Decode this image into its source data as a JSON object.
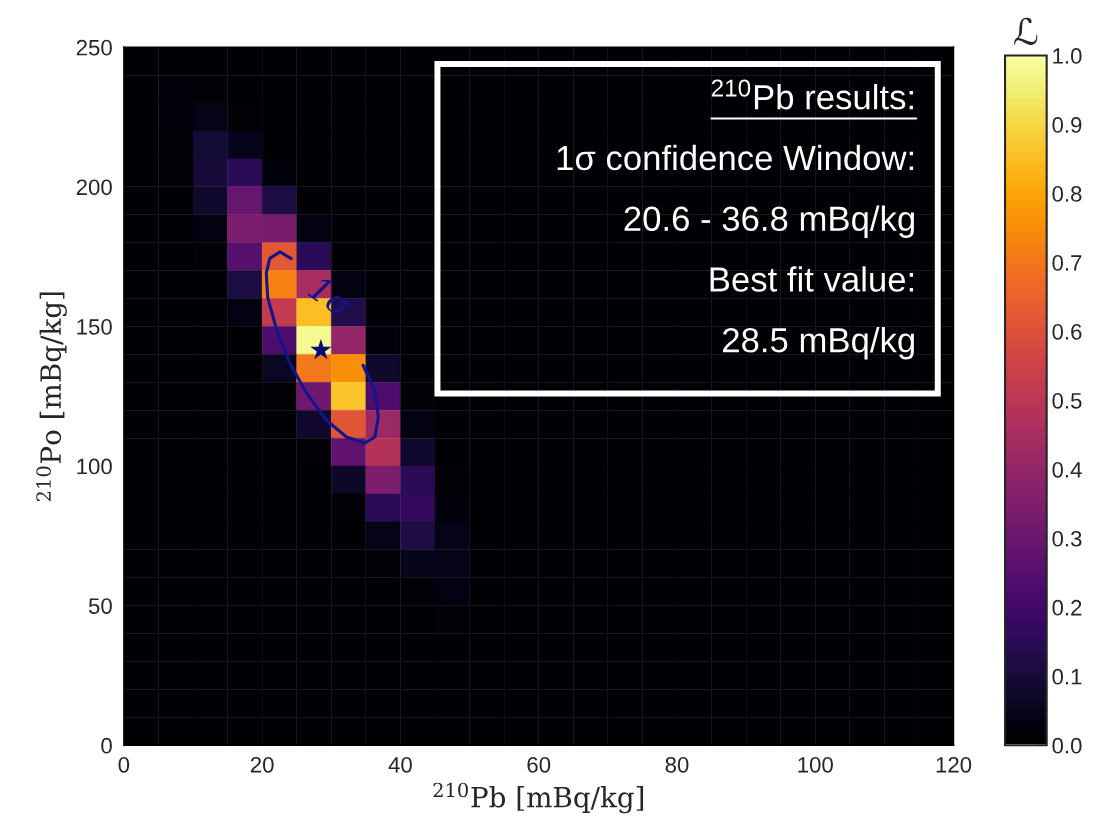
{
  "chart_data": {
    "type": "heatmap",
    "xlabel": "$^{210}$Pb [mBq/kg]",
    "ylabel": "$^{210}$Po [mBq/kg]",
    "clabel": "ℒ",
    "x": [
      2.5,
      7.5,
      12.5,
      17.5,
      22.5,
      27.5,
      32.5,
      37.5,
      42.5,
      47.5,
      52.5,
      57.5,
      62.5,
      67.5,
      72.5,
      77.5,
      82.5,
      87.5,
      92.5,
      97.5,
      102.5,
      107.5,
      112.5,
      117.5
    ],
    "y": [
      245,
      235,
      225,
      215,
      205,
      195,
      185,
      175,
      165,
      155,
      145,
      135,
      125,
      115,
      105,
      95,
      85,
      75,
      65,
      55,
      45,
      35,
      25,
      15,
      5
    ],
    "cells": [
      [
        0,
        0,
        0,
        0,
        0,
        0,
        0,
        0,
        0,
        0,
        0,
        0,
        0,
        0,
        0,
        0,
        0,
        0,
        0,
        0,
        0,
        0,
        0,
        0
      ],
      [
        0,
        0.02,
        0.01,
        0,
        0,
        0,
        0,
        0,
        0,
        0,
        0,
        0,
        0,
        0,
        0,
        0,
        0,
        0,
        0,
        0,
        0,
        0,
        0,
        0
      ],
      [
        0,
        0.02,
        0.04,
        0.01,
        0,
        0,
        0,
        0,
        0,
        0,
        0,
        0,
        0,
        0,
        0,
        0,
        0,
        0,
        0,
        0,
        0,
        0,
        0,
        0
      ],
      [
        0,
        0.01,
        0.09,
        0.05,
        0,
        0,
        0,
        0,
        0,
        0,
        0,
        0,
        0,
        0,
        0,
        0,
        0,
        0,
        0,
        0,
        0,
        0,
        0,
        0
      ],
      [
        0,
        0.01,
        0.1,
        0.15,
        0.02,
        0,
        0,
        0,
        0,
        0,
        0,
        0,
        0,
        0,
        0,
        0,
        0,
        0,
        0,
        0,
        0,
        0,
        0,
        0
      ],
      [
        0,
        0,
        0.08,
        0.29,
        0.11,
        0,
        0,
        0,
        0,
        0,
        0,
        0,
        0,
        0,
        0,
        0,
        0,
        0,
        0,
        0,
        0,
        0,
        0,
        0
      ],
      [
        0,
        0,
        0.03,
        0.34,
        0.33,
        0.03,
        0,
        0,
        0,
        0,
        0,
        0,
        0,
        0,
        0,
        0,
        0,
        0,
        0,
        0,
        0,
        0,
        0,
        0
      ],
      [
        0,
        0,
        0.01,
        0.25,
        0.62,
        0.15,
        0,
        0,
        0,
        0,
        0,
        0,
        0,
        0,
        0,
        0,
        0,
        0,
        0,
        0,
        0,
        0,
        0,
        0
      ],
      [
        0,
        0,
        0,
        0.11,
        0.72,
        0.45,
        0.03,
        0,
        0,
        0,
        0,
        0,
        0,
        0,
        0,
        0,
        0,
        0,
        0,
        0,
        0,
        0,
        0,
        0
      ],
      [
        0,
        0,
        0,
        0.03,
        0.52,
        0.85,
        0.13,
        0,
        0,
        0,
        0,
        0,
        0,
        0,
        0,
        0,
        0,
        0,
        0,
        0,
        0,
        0,
        0,
        0
      ],
      [
        0,
        0,
        0,
        0,
        0.23,
        0.98,
        0.4,
        0.02,
        0,
        0,
        0,
        0,
        0,
        0,
        0,
        0,
        0,
        0,
        0,
        0,
        0,
        0,
        0,
        0
      ],
      [
        0,
        0,
        0,
        0,
        0.06,
        0.7,
        0.75,
        0.08,
        0,
        0,
        0,
        0,
        0,
        0,
        0,
        0,
        0,
        0,
        0,
        0,
        0,
        0,
        0,
        0
      ],
      [
        0,
        0,
        0,
        0,
        0.01,
        0.31,
        0.86,
        0.23,
        0.01,
        0,
        0,
        0,
        0,
        0,
        0,
        0,
        0,
        0,
        0,
        0,
        0,
        0,
        0,
        0
      ],
      [
        0,
        0,
        0,
        0,
        0,
        0.08,
        0.61,
        0.42,
        0.03,
        0,
        0,
        0,
        0,
        0,
        0,
        0,
        0,
        0,
        0,
        0,
        0,
        0,
        0,
        0
      ],
      [
        0,
        0,
        0,
        0,
        0,
        0.01,
        0.27,
        0.48,
        0.08,
        0,
        0,
        0,
        0,
        0,
        0,
        0,
        0,
        0,
        0,
        0,
        0,
        0,
        0,
        0
      ],
      [
        0,
        0,
        0,
        0,
        0,
        0,
        0.07,
        0.34,
        0.15,
        0.01,
        0,
        0,
        0,
        0,
        0,
        0,
        0,
        0,
        0,
        0,
        0,
        0,
        0,
        0
      ],
      [
        0,
        0,
        0,
        0,
        0,
        0,
        0.01,
        0.15,
        0.17,
        0.02,
        0,
        0,
        0,
        0,
        0,
        0,
        0,
        0,
        0,
        0,
        0,
        0,
        0,
        0
      ],
      [
        0,
        0,
        0,
        0,
        0,
        0,
        0,
        0.04,
        0.12,
        0.04,
        0,
        0,
        0,
        0,
        0,
        0,
        0,
        0,
        0,
        0,
        0,
        0,
        0,
        0
      ],
      [
        0,
        0,
        0,
        0,
        0,
        0,
        0,
        0.01,
        0.05,
        0.04,
        0,
        0,
        0,
        0,
        0,
        0,
        0,
        0,
        0,
        0,
        0,
        0,
        0,
        0
      ],
      [
        0,
        0,
        0,
        0,
        0,
        0,
        0,
        0,
        0.01,
        0.03,
        0,
        0,
        0,
        0,
        0,
        0,
        0,
        0,
        0,
        0,
        0,
        0,
        0,
        0
      ],
      [
        0,
        0,
        0,
        0,
        0,
        0,
        0,
        0,
        0,
        0.01,
        0,
        0,
        0,
        0,
        0,
        0,
        0,
        0,
        0,
        0,
        0,
        0,
        0,
        0
      ],
      [
        0,
        0,
        0,
        0,
        0,
        0,
        0,
        0,
        0,
        0,
        0,
        0,
        0,
        0,
        0,
        0,
        0,
        0,
        0,
        0,
        0,
        0,
        0,
        0
      ],
      [
        0,
        0,
        0,
        0,
        0,
        0,
        0,
        0,
        0,
        0,
        0,
        0,
        0,
        0,
        0,
        0,
        0,
        0,
        0,
        0,
        0,
        0,
        0,
        0
      ],
      [
        0,
        0,
        0,
        0,
        0,
        0,
        0,
        0,
        0,
        0,
        0,
        0,
        0,
        0,
        0,
        0,
        0,
        0,
        0,
        0,
        0,
        0,
        0,
        0
      ],
      [
        0,
        0,
        0,
        0,
        0,
        0,
        0,
        0,
        0,
        0,
        0,
        0,
        0,
        0,
        0,
        0,
        0,
        0,
        0,
        0,
        0,
        0,
        0,
        0
      ]
    ],
    "clim": [
      0.0,
      1.0
    ],
    "cticks": [
      {
        "value": 0,
        "label": "0.0"
      },
      0.1,
      0.2,
      0.3,
      0.4,
      0.5,
      0.6,
      0.7,
      0.8,
      0.9,
      {
        "value": 1,
        "label": "1.0"
      }
    ],
    "xlim": [
      0,
      120
    ],
    "xticks": [
      0,
      20,
      40,
      60,
      80,
      100,
      120
    ],
    "ylim": [
      0,
      250
    ],
    "yticks": [
      0,
      50,
      100,
      150,
      200,
      250
    ],
    "series": [
      {
        "type": "line",
        "color": "#14148c",
        "line_style": "solid",
        "x": [
          24.2,
          22.6,
          21.1,
          20.6,
          20.8,
          22.1,
          24.0,
          26.4,
          29.3,
          32.2,
          34.8,
          36.3,
          36.8,
          36.3,
          34.6
        ],
        "values": [
          174.3,
          176.7,
          174.4,
          169.1,
          160.5,
          148.7,
          136.9,
          126.2,
          116.4,
          110.4,
          108.2,
          110.4,
          117.6,
          127.1,
          136.1
        ]
      },
      {
        "type": "scatter",
        "color": "#0a0a78",
        "marker": "star",
        "x": [
          28.5
        ],
        "values": [
          141.5
        ]
      }
    ],
    "annotations": [
      "$^{210}$Pb results:",
      "1σ confidence Window:",
      "20.6 - 36.8 mBq/kg",
      "Best fit value:",
      "28.5 mBq/kg",
      "1σ"
    ]
  }
}
